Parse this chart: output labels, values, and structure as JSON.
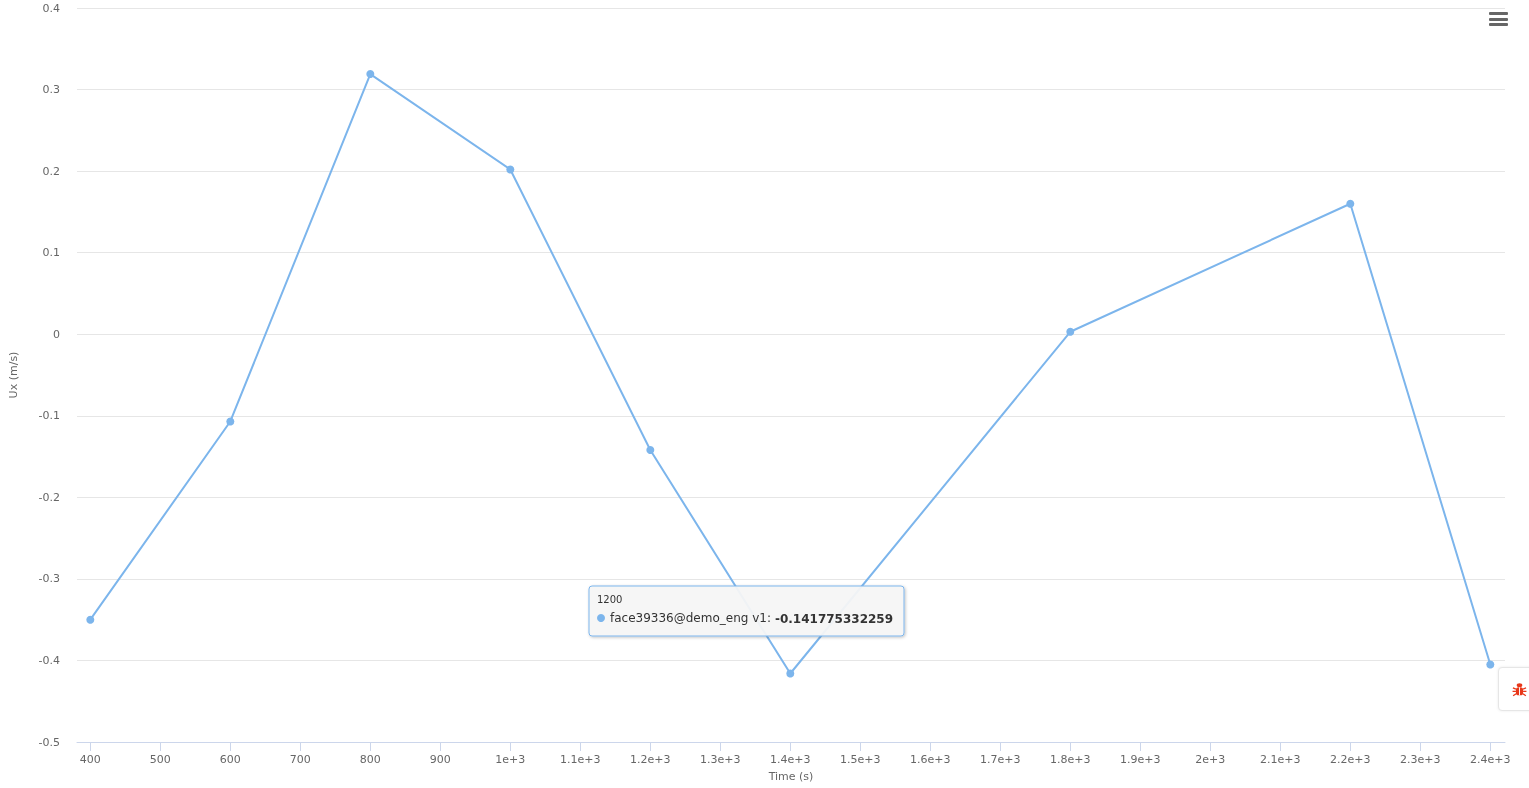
{
  "chart_data": {
    "type": "line",
    "xlabel": "Time (s)",
    "ylabel": "Ux (m/s)",
    "x": [
      400,
      600,
      800,
      1000,
      1200,
      1400,
      1800,
      2200,
      2400
    ],
    "series": [
      {
        "name": "face39336@demo_eng v1:",
        "color": "#7cb5ec",
        "values": [
          -0.35,
          -0.107,
          0.319,
          0.202,
          -0.142,
          -0.416,
          0.003,
          0.16,
          -0.405
        ]
      }
    ],
    "xlim": [
      381,
      2421
    ],
    "xticks": [
      400,
      500,
      600,
      700,
      800,
      900,
      {
        "value": 1000,
        "label": "1e+3"
      },
      {
        "value": 1100,
        "label": "1.1e+3"
      },
      {
        "value": 1200,
        "label": "1.2e+3"
      },
      {
        "value": 1300,
        "label": "1.3e+3"
      },
      {
        "value": 1400,
        "label": "1.4e+3"
      },
      {
        "value": 1500,
        "label": "1.5e+3"
      },
      {
        "value": 1600,
        "label": "1.6e+3"
      },
      {
        "value": 1700,
        "label": "1.7e+3"
      },
      {
        "value": 1800,
        "label": "1.8e+3"
      },
      {
        "value": 1900,
        "label": "1.9e+3"
      },
      {
        "value": 2000,
        "label": "2e+3"
      },
      {
        "value": 2100,
        "label": "2.1e+3"
      },
      {
        "value": 2200,
        "label": "2.2e+3"
      },
      {
        "value": 2300,
        "label": "2.3e+3"
      },
      {
        "value": 2400,
        "label": "2.4e+3"
      }
    ],
    "ylim": [
      -0.5,
      0.4
    ],
    "yticks": [
      -0.5,
      -0.4,
      -0.3,
      -0.2,
      -0.1,
      0,
      0.1,
      0.2,
      0.3,
      0.4
    ],
    "grid": "y",
    "marker": "circle",
    "line_style": "solid",
    "legend": "bottom",
    "annotations": [
      "1200",
      "-0.141775332259"
    ]
  }
}
